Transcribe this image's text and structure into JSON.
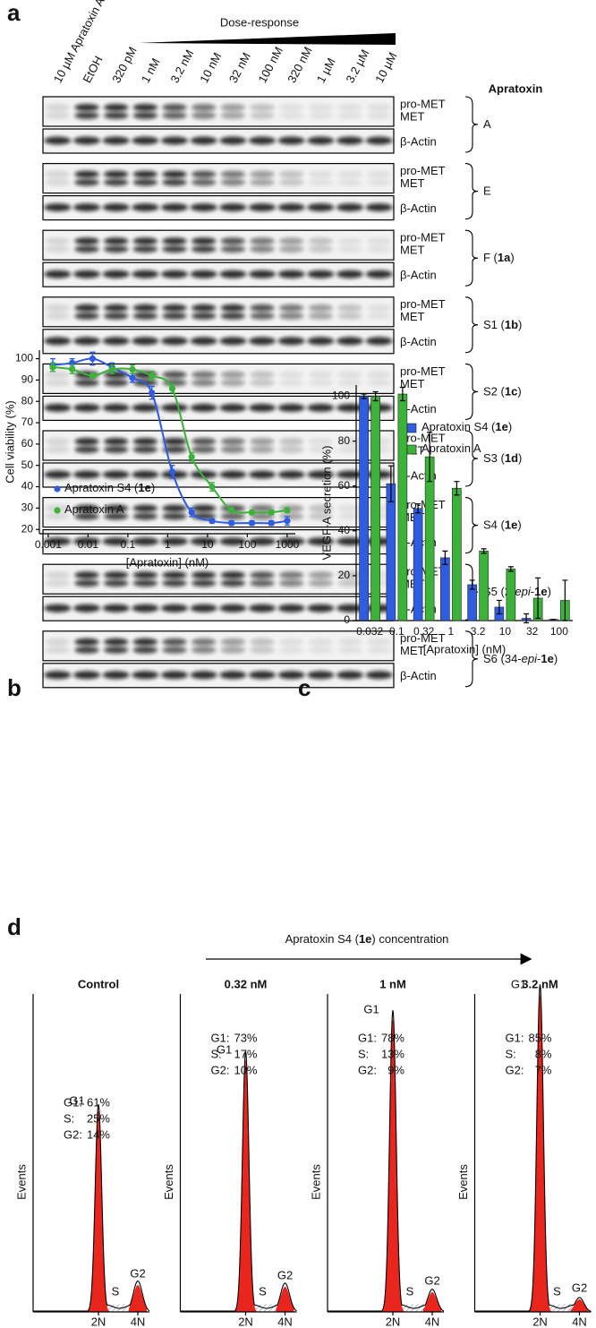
{
  "panel_a": {
    "label": "a",
    "dose_label": "Dose-response",
    "lanes": [
      "10 µM Apratoxin A",
      "EtOH",
      "320 pM",
      "1 nM",
      "3.2 nM",
      "10 nM",
      "32 nM",
      "100 nM",
      "320 nM",
      "1 µM",
      "3.2 µM",
      "10 µM"
    ],
    "compound_header": "Apratoxin",
    "band_labels": {
      "pro": "pro-MET",
      "met": "MET",
      "actin": "β-Actin"
    },
    "compounds": [
      [
        {
          "text": "A"
        }
      ],
      [
        {
          "text": "E"
        }
      ],
      [
        {
          "text": "F ("
        },
        {
          "text": "1a",
          "style": "bold"
        },
        {
          "text": ")"
        }
      ],
      [
        {
          "text": "S1 ("
        },
        {
          "text": "1b",
          "style": "bold"
        },
        {
          "text": ")"
        }
      ],
      [
        {
          "text": "S2 ("
        },
        {
          "text": "1c",
          "style": "bold"
        },
        {
          "text": ")"
        }
      ],
      [
        {
          "text": "S3 ("
        },
        {
          "text": "1d",
          "style": "bold"
        },
        {
          "text": ")"
        }
      ],
      [
        {
          "text": "S4 ("
        },
        {
          "text": "1e",
          "style": "bold"
        },
        {
          "text": ")"
        }
      ],
      [
        {
          "text": "S5 (2-"
        },
        {
          "text": "epi",
          "style": "italic"
        },
        {
          "text": "-"
        },
        {
          "text": "1e",
          "style": "bold"
        },
        {
          "text": ")"
        }
      ],
      [
        {
          "text": "S6 (34-"
        },
        {
          "text": "epi",
          "style": "italic"
        },
        {
          "text": "-"
        },
        {
          "text": "1e",
          "style": "bold"
        },
        {
          "text": ")"
        }
      ]
    ]
  },
  "chart_data": [
    {
      "panel": "b",
      "type": "line",
      "x_label": "[Apratoxin] (nM)",
      "y_label": "Cell viability (%)",
      "x": [
        0.0013,
        0.004,
        0.013,
        0.04,
        0.13,
        0.4,
        1.3,
        4,
        13,
        40,
        130,
        400,
        1000
      ],
      "xlog": true,
      "xlim": [
        0.0006,
        1600
      ],
      "xticks": [
        0.001,
        0.01,
        0.1,
        1,
        10,
        100,
        1000
      ],
      "ylim": [
        18,
        104
      ],
      "yticks": [
        20,
        30,
        40,
        50,
        60,
        70,
        80,
        90,
        100
      ],
      "legend": "lower left",
      "series": [
        {
          "name": [
            {
              "text": "Apratoxin S4 ("
            },
            {
              "text": "1e",
              "style": "bold"
            },
            {
              "text": ")"
            }
          ],
          "color": "#2f5ce0",
          "values": [
            97,
            98,
            100,
            96,
            91,
            84,
            47,
            28,
            24,
            23,
            23,
            23,
            24
          ],
          "errors": [
            3,
            2,
            3,
            2,
            2,
            3,
            3,
            2,
            1,
            1,
            1,
            1,
            2
          ]
        },
        {
          "name": [
            {
              "text": "Apratoxin A"
            }
          ],
          "color": "#3cb23a",
          "values": [
            96,
            95,
            92,
            95,
            95,
            92,
            86,
            54,
            40,
            29,
            28,
            28,
            29
          ],
          "errors": [
            2,
            2,
            1,
            2,
            2,
            2,
            2,
            2,
            2,
            1,
            1,
            1,
            1
          ]
        }
      ]
    },
    {
      "panel": "c",
      "type": "bar",
      "x_label": "[Apratoxin] (nM)",
      "y_label": "VEGF-A secretion (%)",
      "categories": [
        "0.032",
        "0.1",
        "0.32",
        "1",
        "3.2",
        "10",
        "32",
        "100"
      ],
      "ylim": [
        0,
        105
      ],
      "yticks": [
        0,
        20,
        40,
        60,
        80,
        100
      ],
      "legend": "upper right",
      "series": [
        {
          "name": [
            {
              "text": "Apratoxin S4 ("
            },
            {
              "text": "1e",
              "style": "bold"
            },
            {
              "text": ")"
            }
          ],
          "color": "#2f5ce0",
          "values": [
            100,
            61,
            50,
            28,
            16,
            6,
            1,
            0.5
          ],
          "errors": [
            1,
            8,
            2,
            3,
            2,
            3,
            2,
            0
          ]
        },
        {
          "name": [
            {
              "text": "Apratoxin A"
            }
          ],
          "color": "#3cb23a",
          "values": [
            100,
            101,
            73,
            59,
            31,
            23,
            10,
            9
          ],
          "errors": [
            2,
            3,
            11,
            3,
            1,
            1,
            9,
            9
          ]
        }
      ]
    }
  ],
  "panel_d": {
    "label": "d",
    "arrow_label": [
      {
        "text": "Apratoxin S4 ("
      },
      {
        "text": "1e",
        "style": "bold"
      },
      {
        "text": ") concentration"
      }
    ],
    "y_label": "Events",
    "x_labels": [
      "2N",
      "4N"
    ],
    "peaks": [
      "G1",
      "S",
      "G2"
    ],
    "panels": [
      {
        "title": "Control",
        "stats": [
          [
            "G1:",
            "61%"
          ],
          [
            "S:",
            "25%"
          ],
          [
            "G2:",
            "14%"
          ]
        ]
      },
      {
        "title": "0.32 nM",
        "stats": [
          [
            "G1:",
            "73%"
          ],
          [
            "S:",
            "17%"
          ],
          [
            "G2:",
            "10%"
          ]
        ]
      },
      {
        "title": "1 nM",
        "stats": [
          [
            "G1:",
            "78%"
          ],
          [
            "S:",
            "13%"
          ],
          [
            "G2:",
            "9%"
          ]
        ]
      },
      {
        "title": "3.2 nM",
        "stats": [
          [
            "G1:",
            "85%"
          ],
          [
            "S:",
            "8%"
          ],
          [
            "G2:",
            "7%"
          ]
        ]
      }
    ]
  }
}
